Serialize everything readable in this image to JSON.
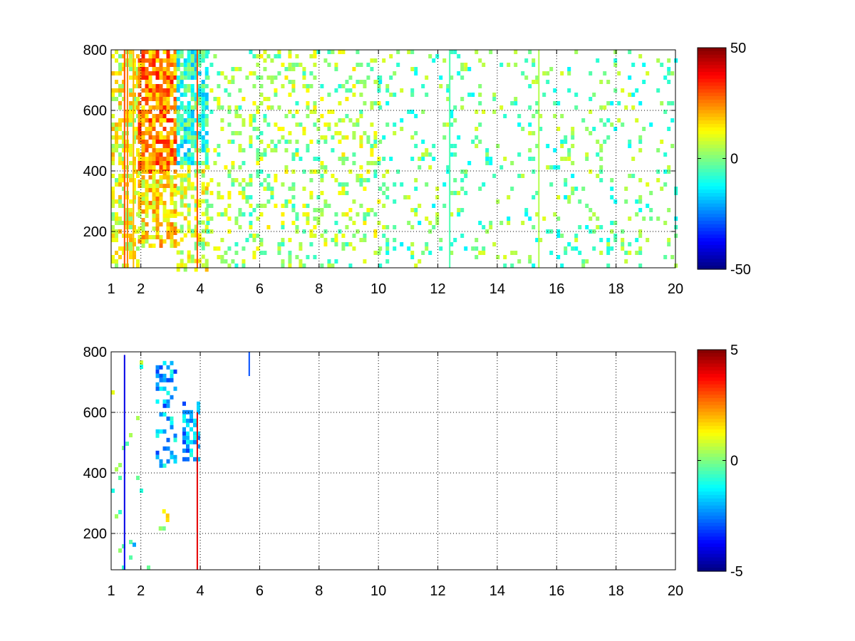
{
  "chart_data": [
    {
      "type": "heatmap",
      "title": "",
      "xlabel": "",
      "ylabel": "",
      "xlim": [
        1,
        20
      ],
      "ylim": [
        80,
        800
      ],
      "x_ticks": [
        "1",
        "2",
        "4",
        "6",
        "8",
        "10",
        "12",
        "14",
        "16",
        "18",
        "20"
      ],
      "y_ticks": [
        "200",
        "400",
        "600",
        "800"
      ],
      "grid": true,
      "grid_style": "dotted",
      "colormap": "jet",
      "colorbar": {
        "range": [
          -50,
          50
        ],
        "ticks": [
          "50",
          "0",
          "-50"
        ],
        "placement": "right"
      },
      "regions": [
        {
          "x": [
            1.0,
            1.9
          ],
          "y": [
            80,
            800
          ],
          "value": 10,
          "density": 0.55
        },
        {
          "x": [
            1.9,
            3.2
          ],
          "y": [
            400,
            800
          ],
          "value": 25,
          "density": 0.8
        },
        {
          "x": [
            1.9,
            3.2
          ],
          "y": [
            150,
            400
          ],
          "value": 15,
          "density": 0.7
        },
        {
          "x": [
            3.2,
            4.2
          ],
          "y": [
            420,
            800
          ],
          "value": -8,
          "density": 0.75
        },
        {
          "x": [
            3.2,
            4.2
          ],
          "y": [
            80,
            420
          ],
          "value": 8,
          "density": 0.45
        },
        {
          "x": [
            4.2,
            6.0
          ],
          "y": [
            80,
            800
          ],
          "value": 2,
          "density": 0.22
        },
        {
          "x": [
            6.0,
            10.0
          ],
          "y": [
            80,
            800
          ],
          "value": 3,
          "density": 0.2
        },
        {
          "x": [
            10.0,
            20.0
          ],
          "y": [
            80,
            800
          ],
          "value": -2,
          "density": 0.12
        }
      ],
      "vertical_streaks": [
        {
          "x": 1.45,
          "value": 30
        },
        {
          "x": 1.55,
          "value": 25
        },
        {
          "x": 1.75,
          "value": 20
        },
        {
          "x": 3.9,
          "value": 30
        },
        {
          "x": 12.4,
          "value": -5
        },
        {
          "x": 15.4,
          "value": 5
        }
      ]
    },
    {
      "type": "heatmap",
      "title": "",
      "xlabel": "",
      "ylabel": "",
      "xlim": [
        1,
        20
      ],
      "ylim": [
        80,
        800
      ],
      "x_ticks": [
        "1",
        "2",
        "4",
        "6",
        "8",
        "10",
        "12",
        "14",
        "16",
        "18",
        "20"
      ],
      "y_ticks": [
        "200",
        "400",
        "600",
        "800"
      ],
      "grid": true,
      "grid_style": "dotted",
      "colormap": "jet",
      "colorbar": {
        "range": [
          -5,
          5
        ],
        "ticks": [
          "5",
          "0",
          "-5"
        ],
        "placement": "right"
      },
      "regions": [
        {
          "x": [
            2.5,
            3.2
          ],
          "y": [
            420,
            770
          ],
          "value": -2,
          "density": 0.4
        },
        {
          "x": [
            3.4,
            3.9
          ],
          "y": [
            440,
            650
          ],
          "value": -2,
          "density": 0.45
        },
        {
          "x": [
            2.6,
            2.9
          ],
          "y": [
            210,
            280
          ],
          "value": 1,
          "density": 0.5
        },
        {
          "x": [
            1.6,
            1.8
          ],
          "y": [
            120,
            170
          ],
          "value": -1.5,
          "density": 0.5
        },
        {
          "x": [
            1.0,
            2.2
          ],
          "y": [
            80,
            800
          ],
          "value": 0,
          "density": 0.03
        }
      ],
      "vertical_streaks": [
        {
          "x": 1.45,
          "value": -4,
          "y": [
            80,
            790
          ]
        },
        {
          "x": 3.9,
          "value": 4,
          "y": [
            80,
            600
          ]
        },
        {
          "x": 5.65,
          "value": -3,
          "y": [
            720,
            800
          ]
        }
      ]
    }
  ]
}
